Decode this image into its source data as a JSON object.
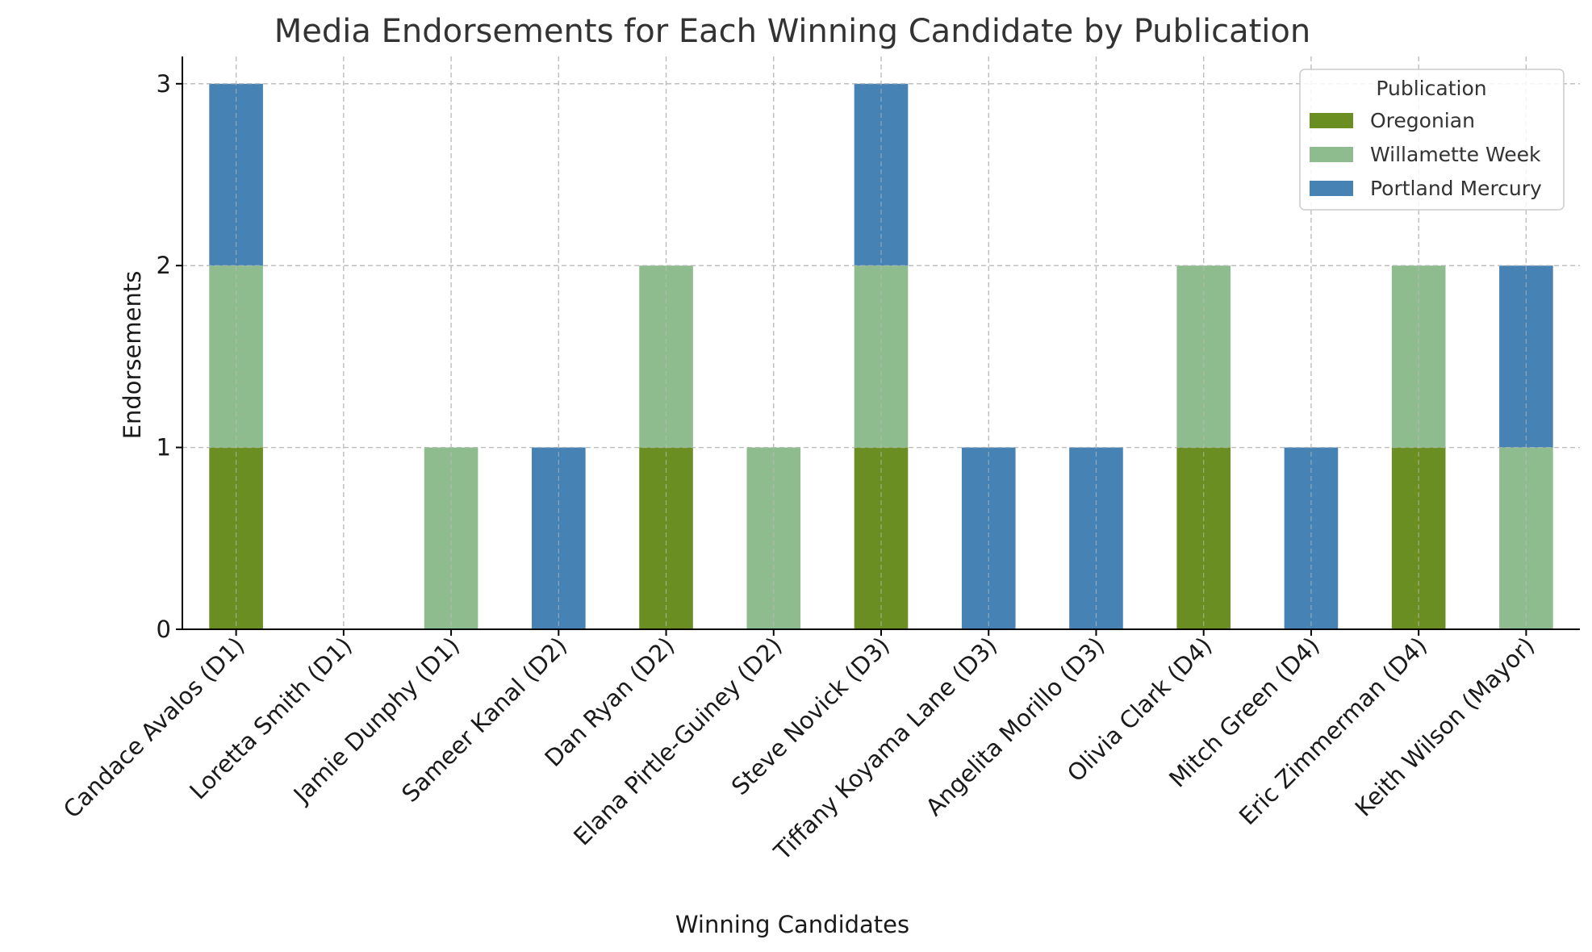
{
  "chart_data": {
    "type": "bar",
    "stacked": true,
    "title": "Media Endorsements for Each Winning Candidate by Publication",
    "xlabel": "Winning Candidates",
    "ylabel": "Endorsements",
    "ylim": [
      0,
      3.15
    ],
    "yticks": [
      0,
      1,
      2,
      3
    ],
    "grid": true,
    "legend": {
      "title": "Publication",
      "position": "top-right"
    },
    "categories": [
      "Candace Avalos (D1)",
      "Loretta Smith (D1)",
      "Jamie Dunphy (D1)",
      "Sameer Kanal (D2)",
      "Dan Ryan (D2)",
      "Elana Pirtle-Guiney (D2)",
      "Steve Novick (D3)",
      "Tiffany Koyama Lane (D3)",
      "Angelita Morillo (D3)",
      "Olivia Clark (D4)",
      "Mitch Green (D4)",
      "Eric Zimmerman (D4)",
      "Keith Wilson (Mayor)"
    ],
    "series": [
      {
        "name": "Oregonian",
        "color": "#6b8e23",
        "values": [
          1,
          0,
          0,
          0,
          1,
          0,
          1,
          0,
          0,
          1,
          0,
          1,
          0
        ]
      },
      {
        "name": "Willamette Week",
        "color": "#8fbc8f",
        "values": [
          1,
          0,
          1,
          0,
          1,
          1,
          1,
          0,
          0,
          1,
          0,
          1,
          1
        ]
      },
      {
        "name": "Portland Mercury",
        "color": "#4682b4",
        "values": [
          1,
          0,
          0,
          1,
          0,
          0,
          1,
          1,
          1,
          0,
          1,
          0,
          1
        ]
      }
    ]
  }
}
